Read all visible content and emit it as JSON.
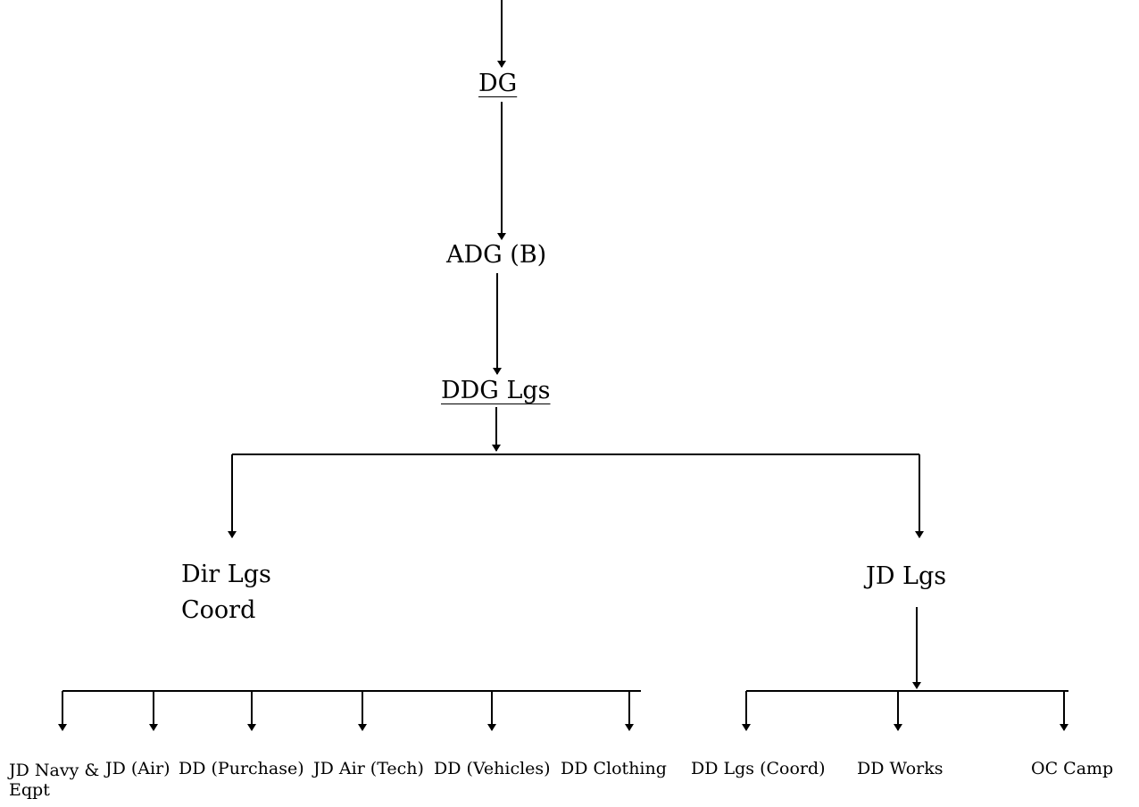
{
  "colors": {
    "line": "#000000",
    "text": "#000000",
    "background": "#ffffff"
  },
  "nodes": {
    "dg": "DG",
    "adg_b": "ADG (B)",
    "ddg_lgs": "DDG Lgs",
    "dir_lgs_coord_line1": "Dir Lgs",
    "dir_lgs_coord_line2": "Coord",
    "jd_lgs": "JD Lgs",
    "jd_navy_line1": "JD Navy &",
    "jd_navy_line2": "Eqpt",
    "jd_air": "JD (Air)",
    "dd_purchase": "DD (Purchase)",
    "jd_air_tech": "JD Air (Tech)",
    "dd_vehicles": "DD (Vehicles)",
    "dd_clothing": "DD Clothing",
    "dd_lgs_coord": "DD Lgs (Coord)",
    "dd_works": "DD Works",
    "oc_camp": "OC Camp"
  }
}
